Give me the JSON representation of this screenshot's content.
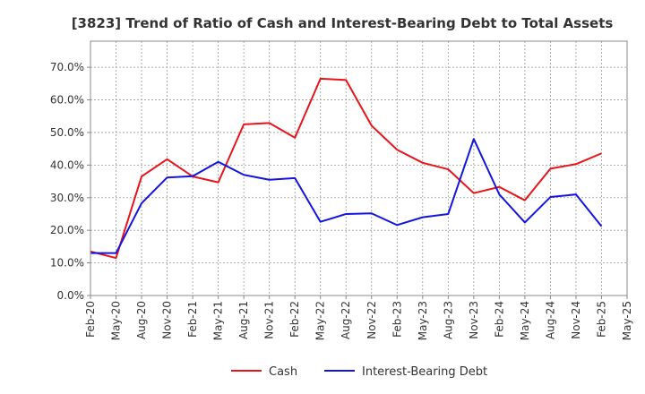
{
  "chart_data": {
    "type": "line",
    "title": "[3823]  Trend of Ratio of Cash and Interest-Bearing Debt to Total Assets",
    "xlabel": "",
    "ylabel": "",
    "x_ticks": [
      "Feb-20",
      "May-20",
      "Aug-20",
      "Nov-20",
      "Feb-21",
      "May-21",
      "Aug-21",
      "Nov-21",
      "Feb-22",
      "May-22",
      "Aug-22",
      "Nov-22",
      "Feb-23",
      "May-23",
      "Aug-23",
      "Nov-23",
      "Feb-24",
      "May-24",
      "Aug-24",
      "Nov-24",
      "Feb-25",
      "May-25"
    ],
    "y_ticks": [
      "0.0%",
      "10.0%",
      "20.0%",
      "30.0%",
      "40.0%",
      "50.0%",
      "60.0%",
      "70.0%"
    ],
    "ylim": [
      0,
      0.78
    ],
    "grid": true,
    "legend_position": "bottom",
    "x": [
      "Feb-20",
      "May-20",
      "Aug-20",
      "Nov-20",
      "Feb-21",
      "May-21",
      "Aug-21",
      "Nov-21",
      "Feb-22",
      "May-22",
      "Aug-22",
      "Nov-22",
      "Feb-23",
      "May-23",
      "Aug-23",
      "Nov-23",
      "Feb-24",
      "May-24",
      "Aug-24",
      "Nov-24",
      "Feb-25"
    ],
    "series": [
      {
        "name": "Cash",
        "color": "#e8141a",
        "values": [
          0.135,
          0.115,
          0.365,
          0.418,
          0.365,
          0.347,
          0.525,
          0.529,
          0.484,
          0.665,
          0.661,
          0.521,
          0.447,
          0.407,
          0.387,
          0.314,
          0.333,
          0.292,
          0.389,
          0.403,
          0.436
        ]
      },
      {
        "name": "Interest-Bearing Debt",
        "color": "#1414e0",
        "values": [
          0.13,
          0.13,
          0.283,
          0.362,
          0.366,
          0.41,
          0.37,
          0.355,
          0.36,
          0.226,
          0.25,
          0.252,
          0.216,
          0.24,
          0.25,
          0.48,
          0.31,
          0.224,
          0.302,
          0.31,
          0.212
        ]
      }
    ]
  }
}
